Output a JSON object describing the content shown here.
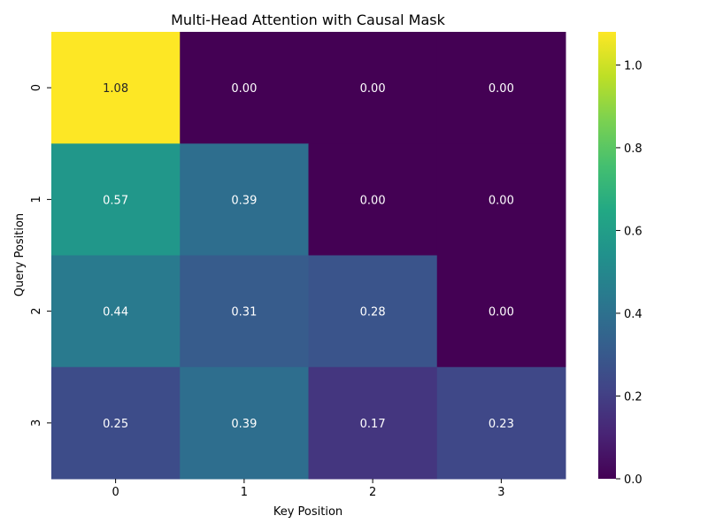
{
  "chart_data": {
    "type": "heatmap",
    "title": "Multi-Head Attention with Causal Mask",
    "xlabel": "Key Position",
    "ylabel": "Query Position",
    "x_categories": [
      "0",
      "1",
      "2",
      "3"
    ],
    "y_categories": [
      "0",
      "1",
      "2",
      "3"
    ],
    "values": [
      [
        1.08,
        0.0,
        0.0,
        0.0
      ],
      [
        0.57,
        0.39,
        0.0,
        0.0
      ],
      [
        0.44,
        0.31,
        0.28,
        0.0
      ],
      [
        0.25,
        0.39,
        0.17,
        0.23
      ]
    ],
    "cell_labels": [
      [
        "1.08",
        "0.00",
        "0.00",
        "0.00"
      ],
      [
        "0.57",
        "0.39",
        "0.00",
        "0.00"
      ],
      [
        "0.44",
        "0.31",
        "0.28",
        "0.00"
      ],
      [
        "0.25",
        "0.39",
        "0.17",
        "0.23"
      ]
    ],
    "colormap": "viridis",
    "vmin": 0.0,
    "vmax": 1.08,
    "colorbar_ticks": [
      0.0,
      0.2,
      0.4,
      0.6,
      0.8,
      1.0
    ],
    "colorbar_tick_labels": [
      "0.0",
      "0.2",
      "0.4",
      "0.6",
      "0.8",
      "1.0"
    ],
    "grid": false,
    "colorbar_placement": "right"
  }
}
